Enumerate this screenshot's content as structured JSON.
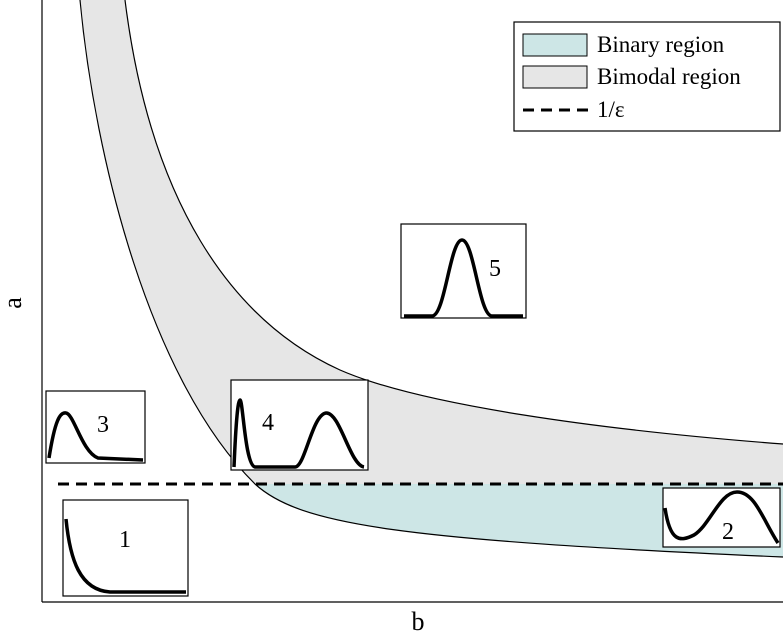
{
  "axes": {
    "xlabel": "b",
    "ylabel": "a"
  },
  "legend": {
    "position": "top-right",
    "items": [
      {
        "label": "Binary region",
        "swatch": "fill",
        "color": "#cde6e6"
      },
      {
        "label": "Bimodal region",
        "swatch": "fill",
        "color": "#e6e6e6"
      },
      {
        "label": "1/ε",
        "swatch": "dashed-line",
        "color": "#000000"
      }
    ]
  },
  "regions": {
    "binary_color": "#cde6e6",
    "bimodal_color": "#e6e6e6"
  },
  "panels": [
    {
      "id": "1",
      "label": "1",
      "shape": "decay"
    },
    {
      "id": "2",
      "label": "2",
      "shape": "dip-then-peak"
    },
    {
      "id": "3",
      "label": "3",
      "shape": "skewed-peak"
    },
    {
      "id": "4",
      "label": "4",
      "shape": "bimodal"
    },
    {
      "id": "5",
      "label": "5",
      "shape": "unimodal"
    }
  ]
}
